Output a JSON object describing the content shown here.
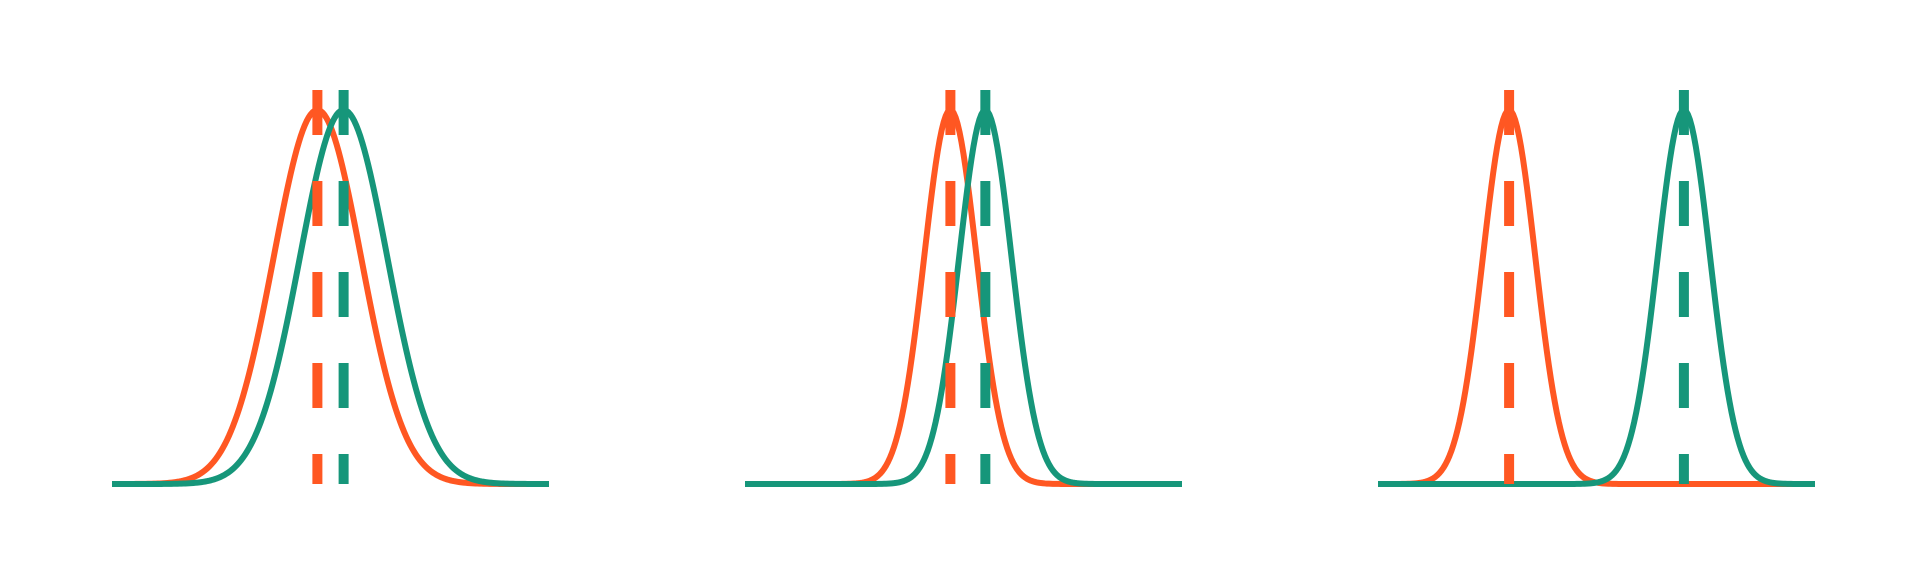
{
  "chart_data": [
    {
      "type": "line",
      "title": "",
      "xlabel": "",
      "ylabel": "",
      "grid": false,
      "legend": "none",
      "xlim": [
        -5,
        5
      ],
      "ylim": [
        0,
        1
      ],
      "series": [
        {
          "color": "#FF5722",
          "mean": -0.3,
          "std": 1.0,
          "shape": "gaussian",
          "mean_marker": "dashed-vertical"
        },
        {
          "color": "#16967A",
          "mean": 0.3,
          "std": 1.0,
          "shape": "gaussian",
          "mean_marker": "dashed-vertical"
        }
      ]
    },
    {
      "type": "line",
      "title": "",
      "xlabel": "",
      "ylabel": "",
      "grid": false,
      "legend": "none",
      "xlim": [
        -5,
        5
      ],
      "ylim": [
        0,
        1
      ],
      "series": [
        {
          "color": "#FF5722",
          "mean": -0.3,
          "std": 0.6,
          "shape": "gaussian",
          "mean_marker": "dashed-vertical"
        },
        {
          "color": "#16967A",
          "mean": 0.5,
          "std": 0.6,
          "shape": "gaussian",
          "mean_marker": "dashed-vertical"
        }
      ]
    },
    {
      "type": "line",
      "title": "",
      "xlabel": "",
      "ylabel": "",
      "grid": false,
      "legend": "none",
      "xlim": [
        -5,
        5
      ],
      "ylim": [
        0,
        1
      ],
      "series": [
        {
          "color": "#FF5722",
          "mean": -2.0,
          "std": 0.6,
          "shape": "gaussian",
          "mean_marker": "dashed-vertical"
        },
        {
          "color": "#16967A",
          "mean": 2.0,
          "std": 0.6,
          "shape": "gaussian",
          "mean_marker": "dashed-vertical"
        }
      ]
    }
  ]
}
